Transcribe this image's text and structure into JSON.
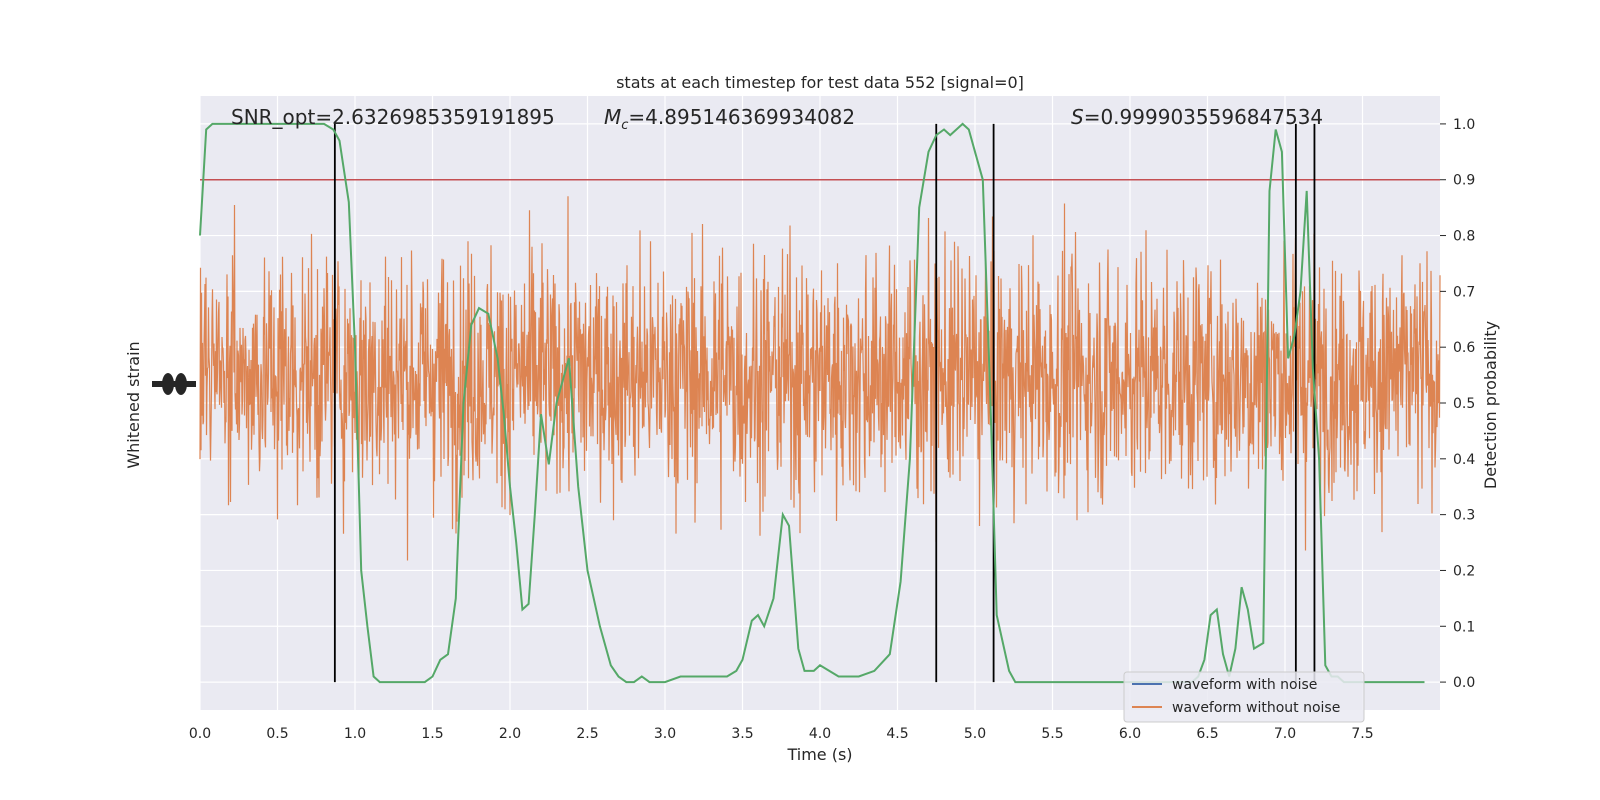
{
  "chart_data": {
    "type": "line",
    "title": "stats at each timestep for test data 552 [signal=0]",
    "xlabel": "Time (s)",
    "ylabel_left": "Whitened strain",
    "ylabel_right": "Detection probability",
    "xlim": [
      0,
      8.0
    ],
    "ylim_right": [
      -0.05,
      1.05
    ],
    "x_ticks": [
      "0.0",
      "0.5",
      "1.0",
      "1.5",
      "2.0",
      "2.5",
      "3.0",
      "3.5",
      "4.0",
      "4.5",
      "5.0",
      "5.5",
      "6.0",
      "6.5",
      "7.0",
      "7.5"
    ],
    "y_ticks_right": [
      "0.0",
      "0.1",
      "0.2",
      "0.3",
      "0.4",
      "0.5",
      "0.6",
      "0.7",
      "0.8",
      "0.9",
      "1.0"
    ],
    "annotations": {
      "snr": "SNR_opt=2.6326985359191895",
      "mc_symbol": "M",
      "mc_sub": "c",
      "mc_value": "=4.895146369934082",
      "s_symbol": "S",
      "s_value": "=0.9999035596847534"
    },
    "threshold": {
      "value": 0.9,
      "color": "#c44e52"
    },
    "vertical_lines_x": [
      0.87,
      4.75,
      5.12,
      7.07,
      7.19
    ],
    "series": [
      {
        "name": "waveform with noise",
        "color": "#4c72b0",
        "kind": "strain"
      },
      {
        "name": "waveform without noise",
        "color": "#dd8452",
        "kind": "strain"
      },
      {
        "color": "#55a868",
        "kind": "probability",
        "x": [
          0.0,
          0.04,
          0.08,
          0.12,
          0.2,
          0.3,
          0.4,
          0.5,
          0.6,
          0.7,
          0.76,
          0.8,
          0.86,
          0.9,
          0.96,
          1.0,
          1.04,
          1.08,
          1.12,
          1.16,
          1.25,
          1.35,
          1.45,
          1.5,
          1.55,
          1.6,
          1.65,
          1.7,
          1.75,
          1.8,
          1.86,
          1.92,
          1.96,
          2.0,
          2.04,
          2.08,
          2.12,
          2.16,
          2.2,
          2.25,
          2.3,
          2.38,
          2.44,
          2.5,
          2.58,
          2.65,
          2.7,
          2.75,
          2.8,
          2.85,
          2.9,
          3.0,
          3.1,
          3.2,
          3.3,
          3.4,
          3.46,
          3.5,
          3.56,
          3.6,
          3.64,
          3.7,
          3.76,
          3.8,
          3.86,
          3.9,
          3.96,
          4.0,
          4.06,
          4.12,
          4.18,
          4.25,
          4.35,
          4.45,
          4.52,
          4.58,
          4.64,
          4.7,
          4.75,
          4.8,
          4.84,
          4.88,
          4.92,
          4.96,
          5.0,
          5.05,
          5.1,
          5.14,
          5.18,
          5.22,
          5.26,
          5.3,
          5.36,
          5.42,
          5.5,
          5.7,
          5.9,
          6.1,
          6.3,
          6.4,
          6.44,
          6.48,
          6.52,
          6.56,
          6.6,
          6.64,
          6.68,
          6.72,
          6.76,
          6.8,
          6.86,
          6.9,
          6.94,
          6.98,
          7.02,
          7.06,
          7.1,
          7.14,
          7.18,
          7.22,
          7.26,
          7.3,
          7.34,
          7.38,
          7.42,
          7.46,
          7.5,
          7.54,
          7.6,
          7.7,
          7.8,
          7.9
        ],
        "y": [
          0.8,
          0.99,
          1.0,
          1.0,
          1.0,
          1.0,
          1.0,
          1.0,
          1.0,
          1.0,
          1.0,
          1.0,
          0.99,
          0.97,
          0.86,
          0.6,
          0.2,
          0.1,
          0.01,
          0.0,
          0.0,
          0.0,
          0.0,
          0.01,
          0.04,
          0.05,
          0.15,
          0.5,
          0.64,
          0.67,
          0.66,
          0.58,
          0.48,
          0.35,
          0.25,
          0.13,
          0.14,
          0.3,
          0.48,
          0.39,
          0.5,
          0.58,
          0.35,
          0.2,
          0.1,
          0.03,
          0.01,
          0.0,
          0.0,
          0.01,
          0.0,
          0.0,
          0.01,
          0.01,
          0.01,
          0.01,
          0.02,
          0.04,
          0.11,
          0.12,
          0.1,
          0.15,
          0.3,
          0.28,
          0.06,
          0.02,
          0.02,
          0.03,
          0.02,
          0.01,
          0.01,
          0.01,
          0.02,
          0.05,
          0.18,
          0.4,
          0.85,
          0.95,
          0.98,
          0.99,
          0.98,
          0.99,
          1.0,
          0.99,
          0.95,
          0.9,
          0.5,
          0.12,
          0.07,
          0.02,
          0.0,
          0.0,
          0.0,
          0.0,
          0.0,
          0.0,
          0.0,
          0.0,
          0.0,
          0.0,
          0.01,
          0.04,
          0.12,
          0.13,
          0.05,
          0.01,
          0.06,
          0.17,
          0.13,
          0.06,
          0.07,
          0.88,
          0.99,
          0.95,
          0.58,
          0.62,
          0.7,
          0.88,
          0.56,
          0.4,
          0.03,
          0.01,
          0.01,
          0.0,
          0.0,
          0.0,
          0.0,
          0.0,
          0.0,
          0.0,
          0.0,
          0.0
        ]
      }
    ],
    "legend_position": "lower-right",
    "grid": true
  },
  "colors": {
    "axes_bg": "#eaeaf2",
    "grid": "#ffffff",
    "vline": "#000000",
    "text": "#262626"
  }
}
